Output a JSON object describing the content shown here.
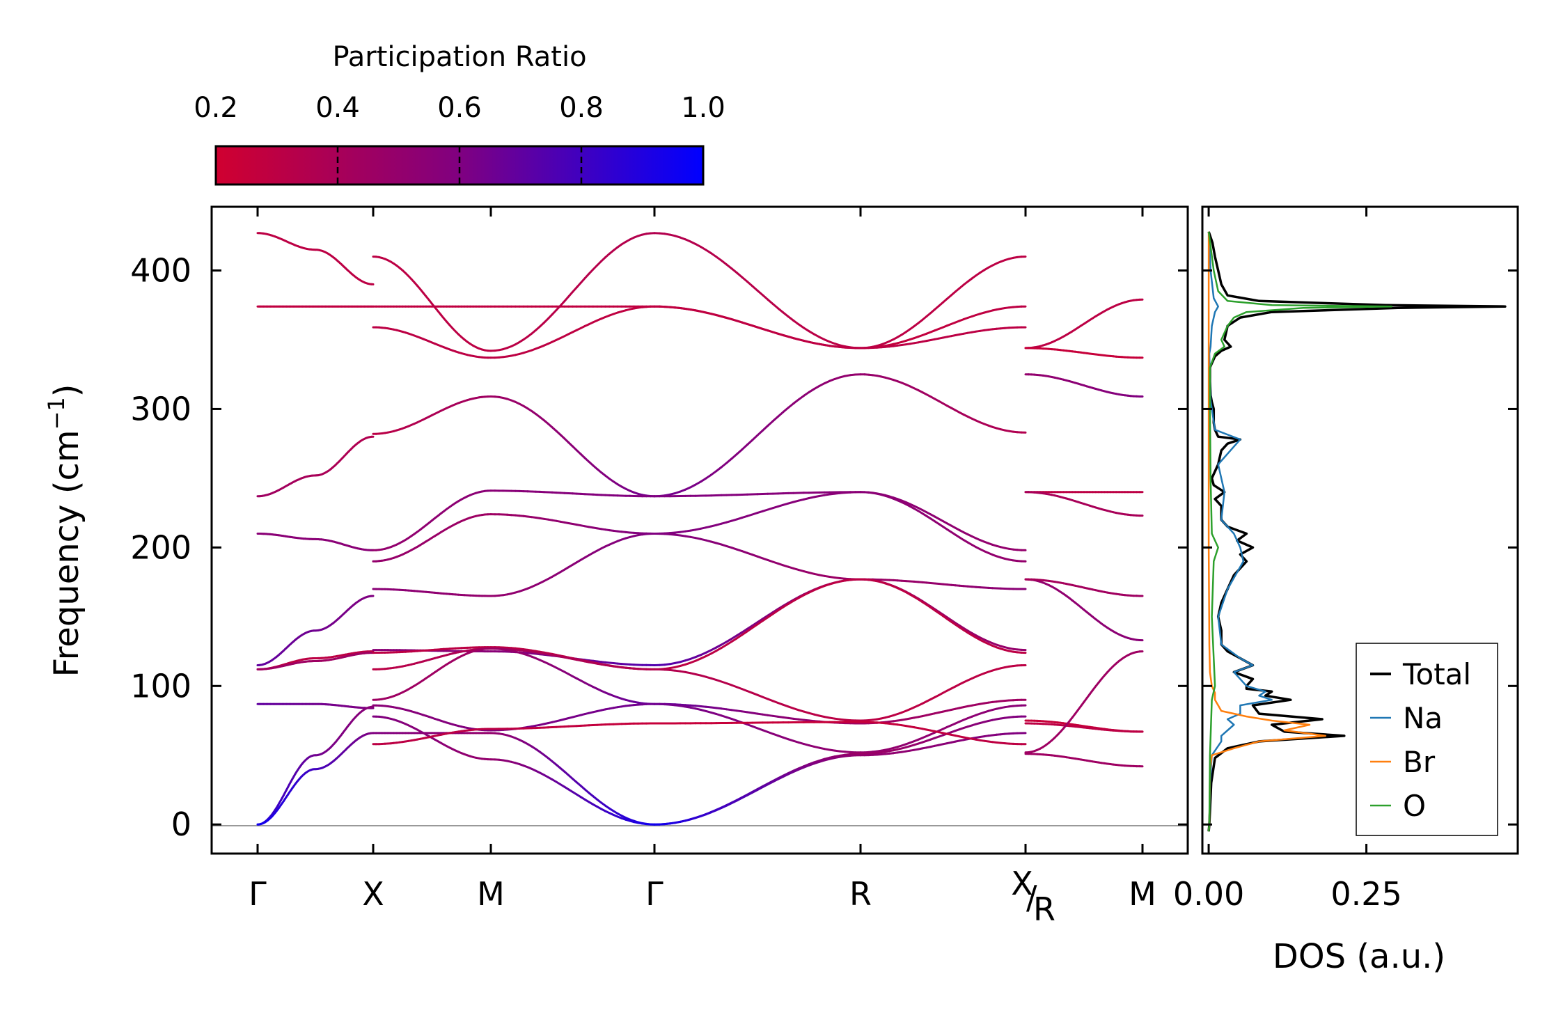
{
  "chart_data": [
    {
      "type": "line",
      "name": "phonon-band-structure",
      "ylabel": "Frequency (cm",
      "ylabel_sup": "−1",
      "ylabel_close": ")",
      "ylim": [
        -21,
        446
      ],
      "yticks": [
        0,
        100,
        200,
        300,
        400
      ],
      "yticklabels": [
        "0",
        "100",
        "200",
        "300",
        "400"
      ],
      "path_positions": [
        0,
        1,
        2,
        3.4,
        5.15,
        6.58,
        7.58
      ],
      "path_segments": [
        [
          0,
          1
        ],
        [
          1,
          5.15
        ],
        [
          5.15,
          6.58
        ],
        [
          6.58,
          7.58
        ]
      ],
      "xticklabels": [
        "Γ",
        "X",
        "M",
        "Γ",
        "R",
        "",
        "M"
      ],
      "special_label": {
        "main": "X",
        "sub": "R"
      },
      "zero_line": true,
      "bands": [
        {
          "k": [
            0,
            0.5,
            1
          ],
          "f": [
            427,
            415,
            390
          ],
          "pr": [
            0.3,
            0.3,
            0.3
          ]
        },
        {
          "k": [
            0,
            0.5,
            1,
            2,
            3.4,
            5.15,
            6.58
          ],
          "f": [
            374,
            374,
            374,
            374,
            374,
            344,
            374
          ],
          "pr": [
            0.28,
            0.28,
            0.28,
            0.28,
            0.28,
            0.25,
            0.3
          ]
        },
        {
          "k": [
            0,
            0.5,
            1
          ],
          "f": [
            237,
            252,
            280
          ],
          "pr": [
            0.45,
            0.4,
            0.35
          ]
        },
        {
          "k": [
            0,
            0.5,
            1
          ],
          "f": [
            210,
            206,
            198
          ],
          "pr": [
            0.55,
            0.55,
            0.55
          ]
        },
        {
          "k": [
            0,
            0.5,
            1
          ],
          "f": [
            115,
            140,
            165
          ],
          "pr": [
            0.7,
            0.65,
            0.6
          ]
        },
        {
          "k": [
            0,
            0.5,
            1
          ],
          "f": [
            112,
            120,
            125
          ],
          "pr": [
            0.3,
            0.3,
            0.3
          ]
        },
        {
          "k": [
            0,
            0.5,
            1
          ],
          "f": [
            112,
            118,
            124
          ],
          "pr": [
            0.45,
            0.45,
            0.45
          ]
        },
        {
          "k": [
            0,
            0.5,
            1
          ],
          "f": [
            87,
            87,
            84
          ],
          "pr": [
            0.7,
            0.65,
            0.6
          ]
        },
        {
          "k": [
            0,
            0.5,
            1
          ],
          "f": [
            0,
            50,
            85
          ],
          "pr": [
            0.9,
            0.65,
            0.55
          ]
        },
        {
          "k": [
            0,
            0.5,
            1
          ],
          "f": [
            0,
            40,
            66
          ],
          "pr": [
            0.95,
            0.8,
            0.6
          ]
        },
        {
          "k": [
            1,
            2,
            3.4,
            5.15,
            6.58
          ],
          "f": [
            410,
            342,
            427,
            344,
            410
          ],
          "pr": [
            0.3,
            0.3,
            0.35,
            0.3,
            0.3
          ]
        },
        {
          "k": [
            1,
            2,
            3.4,
            5.15,
            6.58
          ],
          "f": [
            359,
            337,
            374,
            344,
            359
          ],
          "pr": [
            0.3,
            0.3,
            0.28,
            0.3,
            0.3
          ]
        },
        {
          "k": [
            1,
            2,
            3.4,
            5.15,
            6.58
          ],
          "f": [
            282,
            309,
            237,
            325,
            283
          ],
          "pr": [
            0.3,
            0.45,
            0.65,
            0.5,
            0.35
          ]
        },
        {
          "k": [
            1,
            2,
            3.4,
            5.15,
            6.58
          ],
          "f": [
            198,
            241,
            237,
            240,
            198
          ],
          "pr": [
            0.5,
            0.55,
            0.6,
            0.55,
            0.5
          ]
        },
        {
          "k": [
            1,
            2,
            3.4,
            5.15,
            6.58
          ],
          "f": [
            190,
            224,
            210,
            240,
            190
          ],
          "pr": [
            0.5,
            0.45,
            0.6,
            0.55,
            0.5
          ]
        },
        {
          "k": [
            1,
            2,
            3.4,
            5.15,
            6.58
          ],
          "f": [
            170,
            165,
            210,
            177,
            170
          ],
          "pr": [
            0.55,
            0.5,
            0.6,
            0.45,
            0.55
          ]
        },
        {
          "k": [
            1,
            2,
            3.4,
            5.15,
            6.58
          ],
          "f": [
            126,
            125,
            115,
            177,
            126
          ],
          "pr": [
            0.55,
            0.55,
            0.75,
            0.45,
            0.5
          ]
        },
        {
          "k": [
            1,
            2,
            3.4,
            5.15,
            6.58
          ],
          "f": [
            124,
            128,
            112,
            177,
            124
          ],
          "pr": [
            0.3,
            0.3,
            0.3,
            0.3,
            0.3
          ]
        },
        {
          "k": [
            1,
            2,
            3.4,
            5.15,
            6.58
          ],
          "f": [
            112,
            127,
            112,
            75,
            115
          ],
          "pr": [
            0.3,
            0.4,
            0.35,
            0.3,
            0.3
          ]
        },
        {
          "k": [
            1,
            2,
            3.4,
            5.15,
            6.58
          ],
          "f": [
            90,
            127,
            87,
            73,
            90
          ],
          "pr": [
            0.45,
            0.45,
            0.7,
            0.45,
            0.45
          ]
        },
        {
          "k": [
            1,
            2,
            3.4,
            5.15,
            6.58
          ],
          "f": [
            86,
            68,
            87,
            52,
            86
          ],
          "pr": [
            0.55,
            0.6,
            0.65,
            0.5,
            0.55
          ]
        },
        {
          "k": [
            1,
            2,
            3.4,
            5.15,
            6.58
          ],
          "f": [
            78,
            47,
            0,
            51,
            78
          ],
          "pr": [
            0.6,
            0.5,
            0.95,
            0.45,
            0.6
          ]
        },
        {
          "k": [
            1,
            2,
            3.4,
            5.15,
            6.58
          ],
          "f": [
            66,
            66,
            0,
            50,
            66
          ],
          "pr": [
            0.6,
            0.5,
            0.95,
            0.5,
            0.6
          ]
        },
        {
          "k": [
            1,
            2,
            3.4,
            5.15,
            6.58
          ],
          "f": [
            58,
            69,
            73,
            74,
            58
          ],
          "pr": [
            0.3,
            0.3,
            0.25,
            0.25,
            0.3
          ]
        },
        {
          "k": [
            6.58,
            7.58
          ],
          "f": [
            344,
            379
          ],
          "pr": [
            0.3,
            0.3
          ]
        },
        {
          "k": [
            6.58,
            7.58
          ],
          "f": [
            344,
            337
          ],
          "pr": [
            0.25,
            0.25
          ]
        },
        {
          "k": [
            6.58,
            7.58
          ],
          "f": [
            325,
            309
          ],
          "pr": [
            0.5,
            0.6
          ]
        },
        {
          "k": [
            6.58,
            7.58
          ],
          "f": [
            240,
            240
          ],
          "pr": [
            0.3,
            0.3
          ]
        },
        {
          "k": [
            6.58,
            7.58
          ],
          "f": [
            240,
            223
          ],
          "pr": [
            0.4,
            0.4
          ]
        },
        {
          "k": [
            6.58,
            7.58
          ],
          "f": [
            177,
            133
          ],
          "pr": [
            0.5,
            0.55
          ]
        },
        {
          "k": [
            6.58,
            7.58
          ],
          "f": [
            177,
            165
          ],
          "pr": [
            0.4,
            0.45
          ]
        },
        {
          "k": [
            6.58,
            7.58
          ],
          "f": [
            75,
            67
          ],
          "pr": [
            0.25,
            0.25
          ]
        },
        {
          "k": [
            6.58,
            7.58
          ],
          "f": [
            73,
            67
          ],
          "pr": [
            0.3,
            0.3
          ]
        },
        {
          "k": [
            6.58,
            7.58
          ],
          "f": [
            52,
            125
          ],
          "pr": [
            0.45,
            0.45
          ]
        },
        {
          "k": [
            6.58,
            7.58
          ],
          "f": [
            51,
            42
          ],
          "pr": [
            0.45,
            0.45
          ]
        }
      ]
    },
    {
      "type": "line",
      "name": "phonon-dos",
      "xlabel": "DOS (a.u.)",
      "xlim": [
        -0.01,
        0.49
      ],
      "xticks": [
        0.0,
        0.25
      ],
      "xticklabels": [
        "0.00",
        "0.25"
      ],
      "ylim": [
        -21,
        446
      ],
      "legend_position": "bottom-right",
      "series": [
        {
          "name": "Total",
          "color": "#000000",
          "f": [
            -5,
            0,
            10,
            30,
            48,
            55,
            60,
            64,
            67,
            72,
            76,
            80,
            86,
            90,
            93,
            96,
            98,
            100,
            105,
            110,
            115,
            120,
            125,
            130,
            140,
            150,
            160,
            170,
            180,
            190,
            195,
            200,
            205,
            210,
            215,
            220,
            230,
            235,
            240,
            245,
            250,
            260,
            270,
            275,
            278,
            280,
            285,
            290,
            300,
            305,
            310,
            320,
            330,
            338,
            342,
            345,
            350,
            360,
            366,
            370,
            373,
            374,
            375,
            378,
            382,
            390,
            400,
            410,
            420,
            428
          ],
          "dos": [
            0,
            0.001,
            0.002,
            0.004,
            0.01,
            0.03,
            0.08,
            0.215,
            0.12,
            0.1,
            0.18,
            0.08,
            0.07,
            0.13,
            0.09,
            0.1,
            0.06,
            0.06,
            0.07,
            0.04,
            0.07,
            0.05,
            0.03,
            0.02,
            0.02,
            0.015,
            0.02,
            0.03,
            0.04,
            0.06,
            0.05,
            0.07,
            0.045,
            0.06,
            0.03,
            0.02,
            0.02,
            0.01,
            0.025,
            0.008,
            0.005,
            0.015,
            0.02,
            0.03,
            0.05,
            0.015,
            0.01,
            0.008,
            0.008,
            0.005,
            0.003,
            0.002,
            0.002,
            0.01,
            0.02,
            0.035,
            0.025,
            0.03,
            0.05,
            0.1,
            0.3,
            0.47,
            0.28,
            0.08,
            0.03,
            0.02,
            0.015,
            0.01,
            0.006,
            0
          ]
        },
        {
          "name": "Na",
          "color": "#1f77b4",
          "f": [
            -5,
            0,
            30,
            50,
            60,
            64,
            68,
            72,
            76,
            80,
            86,
            90,
            93,
            96,
            100,
            110,
            115,
            120,
            130,
            150,
            170,
            190,
            200,
            210,
            220,
            240,
            260,
            278,
            285,
            300,
            306,
            320,
            340,
            345,
            360,
            370,
            374,
            380,
            400,
            428
          ],
          "dos": [
            0,
            0.001,
            0.002,
            0.005,
            0.02,
            0.02,
            0.03,
            0.04,
            0.03,
            0.05,
            0.05,
            0.1,
            0.08,
            0.09,
            0.06,
            0.04,
            0.07,
            0.05,
            0.02,
            0.015,
            0.03,
            0.055,
            0.05,
            0.04,
            0.02,
            0.025,
            0.015,
            0.05,
            0.01,
            0.005,
            0.003,
            0.002,
            0.001,
            0.003,
            0.005,
            0.01,
            0.015,
            0.008,
            0.003,
            0
          ]
        },
        {
          "name": "Br",
          "color": "#ff7f0e",
          "f": [
            -5,
            0,
            40,
            50,
            55,
            60,
            64,
            68,
            72,
            75,
            78,
            82,
            86,
            90,
            95,
            100,
            110,
            130,
            200,
            300,
            374,
            428
          ],
          "dos": [
            0,
            0.001,
            0.002,
            0.005,
            0.04,
            0.08,
            0.185,
            0.12,
            0.16,
            0.1,
            0.06,
            0.02,
            0.015,
            0.01,
            0.01,
            0.005,
            0.002,
            0.001,
            0.0,
            0.0,
            0.0,
            0
          ]
        },
        {
          "name": "O",
          "color": "#2ca02c",
          "f": [
            -5,
            0,
            50,
            90,
            100,
            150,
            190,
            200,
            210,
            250,
            300,
            330,
            340,
            345,
            350,
            355,
            360,
            366,
            370,
            373,
            374,
            375,
            378,
            385,
            400,
            428
          ],
          "dos": [
            0,
            0.001,
            0.002,
            0.005,
            0.01,
            0.005,
            0.008,
            0.015,
            0.005,
            0.003,
            0.002,
            0.002,
            0.01,
            0.025,
            0.02,
            0.025,
            0.03,
            0.04,
            0.06,
            0.15,
            0.29,
            0.1,
            0.03,
            0.015,
            0.008,
            0
          ]
        }
      ]
    },
    {
      "type": "colorbar",
      "name": "participation-ratio-colorbar",
      "title": "Participation Ratio",
      "range": [
        0.2,
        1.0
      ],
      "ticks": [
        "0.2",
        "0.4",
        "0.6",
        "0.8",
        "1.0"
      ],
      "tick_values": [
        0.2,
        0.4,
        0.6,
        0.8,
        1.0
      ],
      "colors": {
        "low": "#d00030",
        "mid": "#800080",
        "high": "#0000ff"
      }
    }
  ]
}
